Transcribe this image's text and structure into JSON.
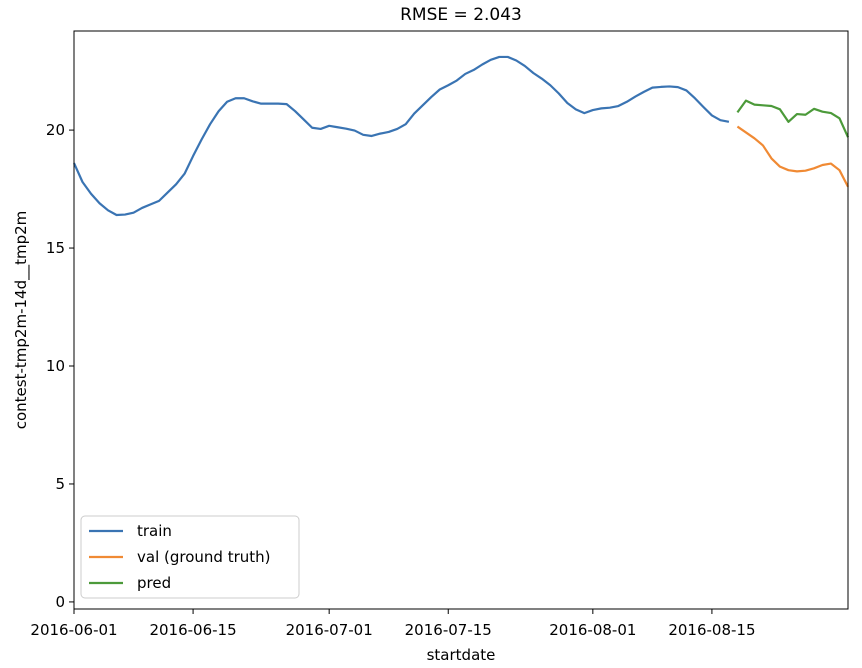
{
  "chart_data": {
    "type": "line",
    "title": "RMSE = 2.043",
    "xlabel": "startdate",
    "ylabel": "contest-tmp2m-14d__tmp2m",
    "xlim": [
      "2016-06-01",
      "2016-08-31"
    ],
    "ylim": [
      -0.3,
      24.2
    ],
    "x_ticks": [
      "2016-06-01",
      "2016-06-15",
      "2016-07-01",
      "2016-07-15",
      "2016-08-01",
      "2016-08-15"
    ],
    "y_ticks": [
      0,
      5,
      10,
      15,
      20
    ],
    "grid": false,
    "legend_position": "lower-left",
    "series": [
      {
        "name": "train",
        "color": "#3a74b3",
        "points": [
          [
            "2016-06-01",
            18.6
          ],
          [
            "2016-06-02",
            17.8
          ],
          [
            "2016-06-03",
            17.3
          ],
          [
            "2016-06-04",
            16.9
          ],
          [
            "2016-06-05",
            16.6
          ],
          [
            "2016-06-06",
            16.4
          ],
          [
            "2016-06-07",
            16.42
          ],
          [
            "2016-06-08",
            16.5
          ],
          [
            "2016-06-09",
            16.7
          ],
          [
            "2016-06-10",
            16.85
          ],
          [
            "2016-06-11",
            17.0
          ],
          [
            "2016-06-12",
            17.35
          ],
          [
            "2016-06-13",
            17.7
          ],
          [
            "2016-06-14",
            18.15
          ],
          [
            "2016-06-15",
            18.9
          ],
          [
            "2016-06-16",
            19.6
          ],
          [
            "2016-06-17",
            20.25
          ],
          [
            "2016-06-18",
            20.8
          ],
          [
            "2016-06-19",
            21.2
          ],
          [
            "2016-06-20",
            21.35
          ],
          [
            "2016-06-21",
            21.35
          ],
          [
            "2016-06-22",
            21.22
          ],
          [
            "2016-06-23",
            21.12
          ],
          [
            "2016-06-24",
            21.12
          ],
          [
            "2016-06-25",
            21.12
          ],
          [
            "2016-06-26",
            21.1
          ],
          [
            "2016-06-27",
            20.8
          ],
          [
            "2016-06-28",
            20.45
          ],
          [
            "2016-06-29",
            20.1
          ],
          [
            "2016-06-30",
            20.05
          ],
          [
            "2016-07-01",
            20.18
          ],
          [
            "2016-07-02",
            20.12
          ],
          [
            "2016-07-03",
            20.06
          ],
          [
            "2016-07-04",
            19.98
          ],
          [
            "2016-07-05",
            19.8
          ],
          [
            "2016-07-06",
            19.75
          ],
          [
            "2016-07-07",
            19.85
          ],
          [
            "2016-07-08",
            19.92
          ],
          [
            "2016-07-09",
            20.05
          ],
          [
            "2016-07-10",
            20.25
          ],
          [
            "2016-07-11",
            20.7
          ],
          [
            "2016-07-12",
            21.05
          ],
          [
            "2016-07-13",
            21.4
          ],
          [
            "2016-07-14",
            21.72
          ],
          [
            "2016-07-15",
            21.9
          ],
          [
            "2016-07-16",
            22.1
          ],
          [
            "2016-07-17",
            22.38
          ],
          [
            "2016-07-18",
            22.55
          ],
          [
            "2016-07-19",
            22.78
          ],
          [
            "2016-07-20",
            22.98
          ],
          [
            "2016-07-21",
            23.1
          ],
          [
            "2016-07-22",
            23.1
          ],
          [
            "2016-07-23",
            22.95
          ],
          [
            "2016-07-24",
            22.72
          ],
          [
            "2016-07-25",
            22.42
          ],
          [
            "2016-07-26",
            22.18
          ],
          [
            "2016-07-27",
            21.9
          ],
          [
            "2016-07-28",
            21.55
          ],
          [
            "2016-07-29",
            21.15
          ],
          [
            "2016-07-30",
            20.88
          ],
          [
            "2016-07-31",
            20.72
          ],
          [
            "2016-08-01",
            20.85
          ],
          [
            "2016-08-02",
            20.92
          ],
          [
            "2016-08-03",
            20.95
          ],
          [
            "2016-08-04",
            21.02
          ],
          [
            "2016-08-05",
            21.2
          ],
          [
            "2016-08-06",
            21.42
          ],
          [
            "2016-08-07",
            21.62
          ],
          [
            "2016-08-08",
            21.8
          ],
          [
            "2016-08-09",
            21.83
          ],
          [
            "2016-08-10",
            21.85
          ],
          [
            "2016-08-11",
            21.82
          ],
          [
            "2016-08-12",
            21.68
          ],
          [
            "2016-08-13",
            21.35
          ],
          [
            "2016-08-14",
            20.98
          ],
          [
            "2016-08-15",
            20.62
          ],
          [
            "2016-08-16",
            20.42
          ],
          [
            "2016-08-17",
            20.35
          ]
        ]
      },
      {
        "name": "val (ground truth)",
        "color": "#f08a34",
        "points": [
          [
            "2016-08-18",
            20.15
          ],
          [
            "2016-08-19",
            19.9
          ],
          [
            "2016-08-20",
            19.65
          ],
          [
            "2016-08-21",
            19.35
          ],
          [
            "2016-08-22",
            18.8
          ],
          [
            "2016-08-23",
            18.45
          ],
          [
            "2016-08-24",
            18.3
          ],
          [
            "2016-08-25",
            18.25
          ],
          [
            "2016-08-26",
            18.28
          ],
          [
            "2016-08-27",
            18.38
          ],
          [
            "2016-08-28",
            18.52
          ],
          [
            "2016-08-29",
            18.58
          ],
          [
            "2016-08-30",
            18.3
          ],
          [
            "2016-08-31",
            17.6
          ]
        ]
      },
      {
        "name": "pred",
        "color": "#4c9a3a",
        "points": [
          [
            "2016-08-18",
            20.75
          ],
          [
            "2016-08-19",
            21.25
          ],
          [
            "2016-08-20",
            21.08
          ],
          [
            "2016-08-21",
            21.05
          ],
          [
            "2016-08-22",
            21.02
          ],
          [
            "2016-08-23",
            20.88
          ],
          [
            "2016-08-24",
            20.35
          ],
          [
            "2016-08-25",
            20.68
          ],
          [
            "2016-08-26",
            20.65
          ],
          [
            "2016-08-27",
            20.9
          ],
          [
            "2016-08-28",
            20.78
          ],
          [
            "2016-08-29",
            20.72
          ],
          [
            "2016-08-30",
            20.5
          ],
          [
            "2016-08-31",
            19.7
          ]
        ]
      }
    ]
  }
}
